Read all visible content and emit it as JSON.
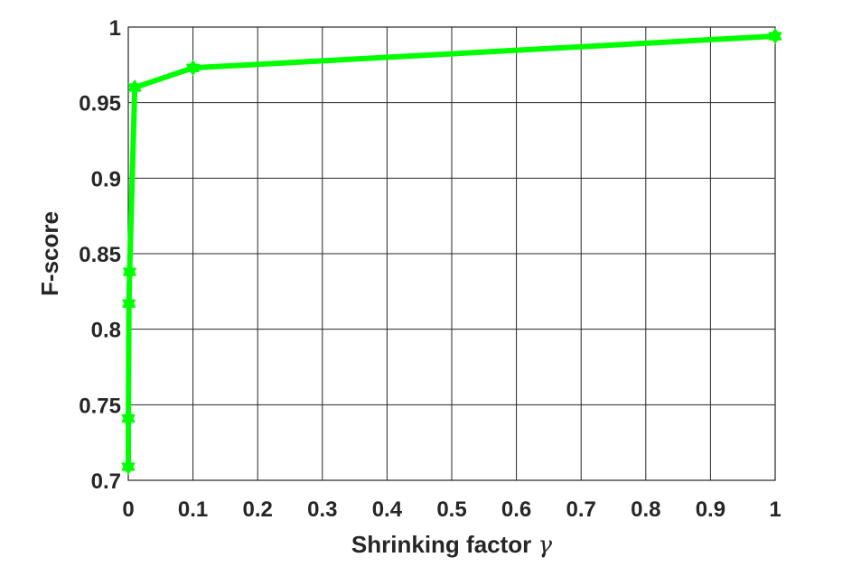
{
  "chart_data": {
    "type": "line",
    "xlabel": "Shrinking factor",
    "xlabel_symbol": "γ",
    "ylabel": "F-score",
    "xlim": [
      0,
      1
    ],
    "ylim": [
      0.7,
      1
    ],
    "x_ticks": [
      0,
      0.1,
      0.2,
      0.3,
      0.4,
      0.5,
      0.6,
      0.7,
      0.8,
      0.9,
      1
    ],
    "x_tick_labels": [
      "0",
      "0.1",
      "0.2",
      "0.3",
      "0.4",
      "0.5",
      "0.6",
      "0.7",
      "0.8",
      "0.9",
      "1"
    ],
    "y_ticks": [
      0.7,
      0.75,
      0.8,
      0.85,
      0.9,
      0.95,
      1
    ],
    "y_tick_labels": [
      "0.7",
      "0.75",
      "0.8",
      "0.85",
      "0.9",
      "0.95",
      "1"
    ],
    "grid": true,
    "series": [
      {
        "color": "#00ff00",
        "marker": "hexagram",
        "x": [
          0,
          0.0001,
          0.001,
          0.002,
          0.01,
          0.1,
          1
        ],
        "y": [
          0.709,
          0.741,
          0.817,
          0.838,
          0.96,
          0.973,
          0.994
        ]
      }
    ]
  }
}
